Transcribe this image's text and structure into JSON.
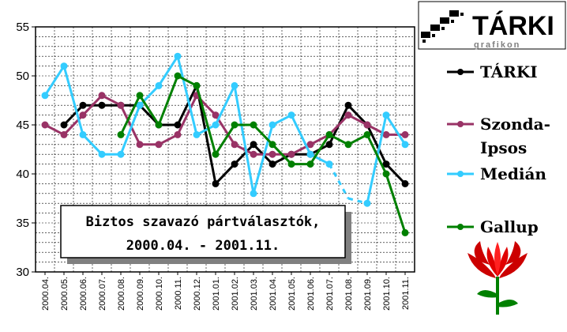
{
  "logo": {
    "text": "TÁRKI",
    "subtext": "grafikon"
  },
  "colors": {
    "tarki": "#000000",
    "szonda": "#993366",
    "median": "#33ccff",
    "gallup": "#008000"
  },
  "chart_data": {
    "type": "line",
    "title": "Biztos szavazó pártválasztók,",
    "subtitle": "2000.04. - 2001.11.",
    "ylim": [
      30,
      55
    ],
    "yticks": [
      30,
      35,
      40,
      45,
      50,
      55
    ],
    "grid": true,
    "legend_position": "right",
    "categories": [
      "2000.04.",
      "2000.05.",
      "2000.06.",
      "2000.07.",
      "2000.08.",
      "2000.09.",
      "2000.10.",
      "2000.11.",
      "2000.12.",
      "2001.01.",
      "2001.02.",
      "2001.03.",
      "2001.04.",
      "2001.05.",
      "2001.06.",
      "2001.07.",
      "2001.08.",
      "2001.09.",
      "2001.10.",
      "2001.11."
    ],
    "series": [
      {
        "name": "TÁRKI",
        "color": "#000000",
        "values": [
          null,
          45,
          47,
          47,
          47,
          47,
          45,
          45,
          49,
          39,
          41,
          43,
          41,
          42,
          42,
          43,
          47,
          45,
          41,
          39
        ]
      },
      {
        "name": "Szonda-Ipsos",
        "color": "#993366",
        "values": [
          45,
          44,
          46,
          48,
          47,
          43,
          43,
          44,
          48,
          46,
          43,
          42,
          42,
          42,
          43,
          44,
          46,
          45,
          44,
          44
        ]
      },
      {
        "name": "Medián",
        "color": "#33ccff",
        "values": [
          48,
          51,
          44,
          42,
          42,
          47,
          49,
          52,
          44,
          45,
          49,
          38,
          45,
          46,
          42,
          41,
          37.5,
          37,
          46,
          43
        ],
        "dashed_segment": [
          15,
          17
        ]
      },
      {
        "name": "Gallup",
        "color": "#008000",
        "values": [
          null,
          null,
          null,
          null,
          44,
          48,
          45,
          50,
          49,
          42,
          45,
          45,
          43,
          41,
          41,
          44,
          43,
          44,
          40,
          34
        ]
      }
    ]
  }
}
